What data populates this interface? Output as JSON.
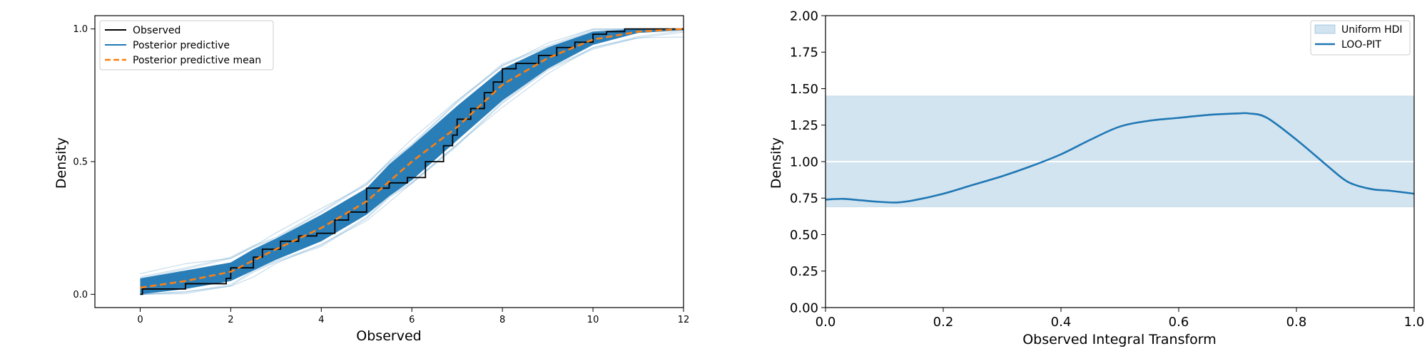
{
  "chart_data": [
    {
      "type": "line",
      "title": "",
      "xlabel": "Observed",
      "ylabel": "Density",
      "xlim": [
        -1,
        12
      ],
      "ylim": [
        -0.05,
        1.05
      ],
      "x_ticks": [
        0,
        2,
        4,
        6,
        8,
        10,
        12
      ],
      "y_ticks": [
        0.0,
        0.5,
        1.0
      ],
      "x_tick_labels": [
        "0",
        "2",
        "4",
        "6",
        "8",
        "10",
        "12"
      ],
      "y_tick_labels": [
        "0.0",
        "0.5",
        "1.0"
      ],
      "grid": false,
      "legend_position": "top-left",
      "legend": [
        "Observed",
        "Posterior predictive",
        "Posterior predictive mean"
      ],
      "colors": {
        "observed": "#000000",
        "posterior": "#1f77b4",
        "mean": "#ff7f0e"
      },
      "series": [
        {
          "name": "Observed",
          "step": true,
          "x": [
            0,
            0.05,
            1.0,
            1.9,
            2.0,
            2.5,
            2.7,
            3.1,
            3.5,
            3.9,
            4.3,
            4.6,
            5.0,
            5.0,
            5.5,
            5.9,
            6.3,
            6.7,
            6.9,
            7.0,
            7.3,
            7.6,
            7.8,
            8.0,
            8.3,
            8.8,
            9.2,
            9.6,
            10.0,
            10.3,
            10.7,
            11.0,
            12.0
          ],
          "y": [
            0.0,
            0.02,
            0.04,
            0.06,
            0.1,
            0.14,
            0.17,
            0.2,
            0.22,
            0.23,
            0.28,
            0.31,
            0.33,
            0.4,
            0.42,
            0.44,
            0.5,
            0.56,
            0.6,
            0.66,
            0.7,
            0.76,
            0.8,
            0.85,
            0.87,
            0.9,
            0.93,
            0.95,
            0.98,
            0.99,
            1.0,
            1.0,
            1.0
          ]
        },
        {
          "name": "Posterior predictive",
          "band_x": [
            0,
            1,
            2,
            2.5,
            3,
            4,
            5,
            5.5,
            6,
            7,
            8,
            9,
            10,
            11,
            12
          ],
          "band_lower": [
            0.0,
            0.02,
            0.05,
            0.09,
            0.13,
            0.2,
            0.3,
            0.37,
            0.43,
            0.58,
            0.73,
            0.85,
            0.94,
            0.985,
            0.995
          ],
          "band_upper": [
            0.06,
            0.09,
            0.12,
            0.17,
            0.21,
            0.3,
            0.4,
            0.49,
            0.56,
            0.71,
            0.85,
            0.93,
            0.99,
            1.0,
            1.0
          ]
        },
        {
          "name": "Posterior predictive mean",
          "x": [
            0,
            1,
            2,
            3,
            4,
            5,
            6,
            7,
            8,
            9,
            10,
            11,
            12
          ],
          "y": [
            0.025,
            0.05,
            0.085,
            0.17,
            0.25,
            0.35,
            0.5,
            0.63,
            0.79,
            0.89,
            0.96,
            0.99,
            1.0
          ]
        }
      ]
    },
    {
      "type": "line",
      "title": "",
      "xlabel": "Observed Integral Transform",
      "ylabel": "Density",
      "xlim": [
        0.0,
        1.0
      ],
      "ylim": [
        0.0,
        2.0
      ],
      "x_ticks": [
        0.0,
        0.2,
        0.4,
        0.6,
        0.8,
        1.0
      ],
      "y_ticks": [
        0.0,
        0.25,
        0.5,
        0.75,
        1.0,
        1.25,
        1.5,
        1.75,
        2.0
      ],
      "x_tick_labels": [
        "0.0",
        "0.2",
        "0.4",
        "0.6",
        "0.8",
        "1.0"
      ],
      "y_tick_labels": [
        "0.00",
        "0.25",
        "0.50",
        "0.75",
        "1.00",
        "1.25",
        "1.50",
        "1.75",
        "2.00"
      ],
      "grid": false,
      "legend_position": "top-right",
      "legend": [
        "Uniform HDI",
        "LOO-PIT"
      ],
      "colors": {
        "hdi": "#1f77b4",
        "line": "#1f77b4",
        "ref": "#ffffff"
      },
      "hdi": {
        "lower": 0.69,
        "upper": 1.45
      },
      "reference_y": 1.0,
      "series": [
        {
          "name": "LOO-PIT",
          "x": [
            0.0,
            0.03,
            0.06,
            0.09,
            0.12,
            0.15,
            0.2,
            0.25,
            0.3,
            0.35,
            0.4,
            0.45,
            0.5,
            0.55,
            0.6,
            0.65,
            0.7,
            0.72,
            0.75,
            0.8,
            0.85,
            0.88,
            0.9,
            0.93,
            0.96,
            1.0
          ],
          "y": [
            0.74,
            0.745,
            0.735,
            0.725,
            0.72,
            0.735,
            0.78,
            0.84,
            0.9,
            0.97,
            1.05,
            1.15,
            1.24,
            1.28,
            1.3,
            1.32,
            1.33,
            1.33,
            1.3,
            1.15,
            0.98,
            0.88,
            0.84,
            0.81,
            0.8,
            0.78
          ]
        }
      ]
    }
  ]
}
